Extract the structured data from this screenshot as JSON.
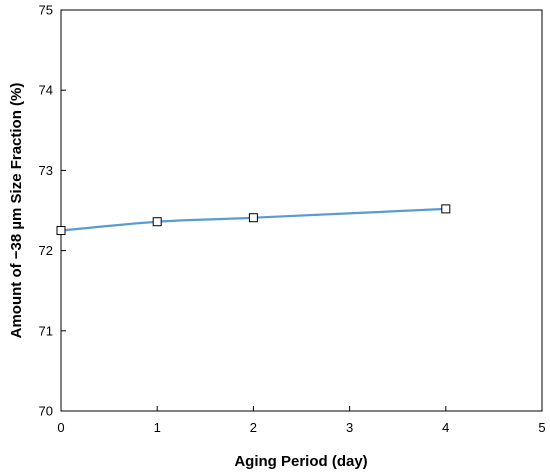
{
  "chart_data": {
    "type": "line",
    "title": "",
    "xlabel": "Aging Period (day)",
    "ylabel": "Amount of −38 µm Size Fraction (%)",
    "xlim": [
      0,
      5
    ],
    "ylim": [
      70,
      75
    ],
    "x_ticks": [
      "0",
      "1",
      "2",
      "3",
      "4",
      "5"
    ],
    "y_ticks": [
      "70",
      "71",
      "72",
      "73",
      "74",
      "75"
    ],
    "grid": false,
    "legend": "none",
    "series": [
      {
        "x": [
          0,
          1,
          2,
          4
        ],
        "y": [
          72.25,
          72.36,
          72.41,
          72.52
        ],
        "line_color": "#5b9bd5",
        "marker": "open-square"
      }
    ]
  }
}
